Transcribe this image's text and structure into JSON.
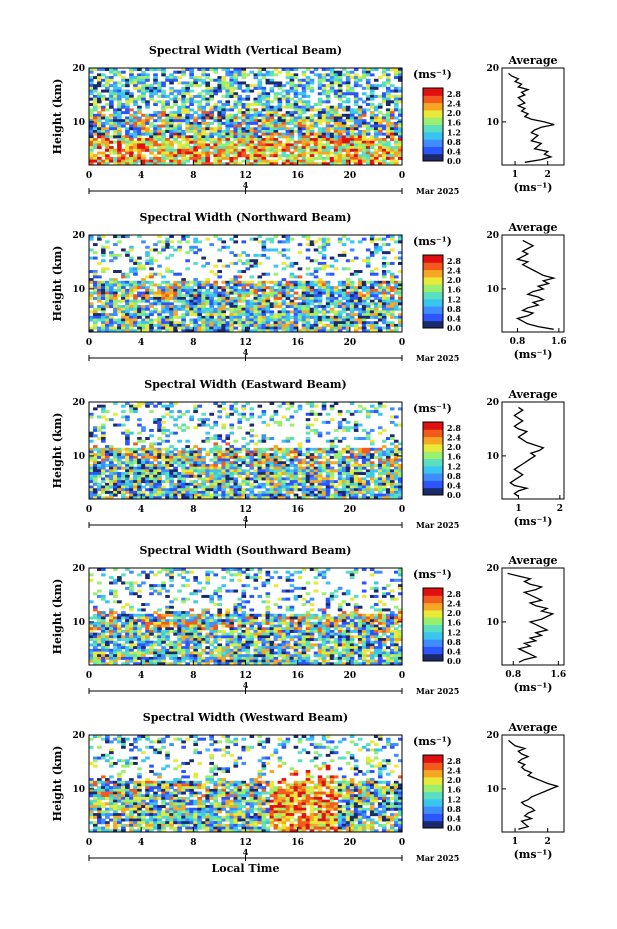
{
  "colorbar": {
    "unit": "(ms⁻¹)",
    "ticks": [
      "2.8",
      "2.4",
      "2.0",
      "1.6",
      "1.2",
      "0.8",
      "0.4",
      "0.0"
    ],
    "colors": [
      "#1b2a6b",
      "#2a55ff",
      "#3f8cff",
      "#39c5f0",
      "#5ae0c0",
      "#9aef6f",
      "#e9e93a",
      "#f5a623",
      "#f25a1e",
      "#e01010"
    ]
  },
  "chart_data": [
    {
      "type": "heatmap",
      "title": "Spectral Width (Vertical Beam)",
      "ylabel": "Height (km)",
      "yticks": [
        "20",
        "10"
      ],
      "ylim": [
        2,
        20
      ],
      "xticks": [
        "0",
        "4",
        "8",
        "12",
        "16",
        "20",
        "0"
      ],
      "xlim": [
        0,
        24
      ],
      "date_tick": "4",
      "month_label": "Mar 2025",
      "profile": {
        "title": "Average",
        "xticks": [
          "1",
          "2"
        ],
        "yticks": [
          "20",
          "10"
        ],
        "xlabel": "(ms⁻¹)",
        "xlim": [
          0.6,
          2.5
        ],
        "heights": [
          2.5,
          3,
          3.5,
          4,
          4.5,
          5,
          5.5,
          6,
          6.5,
          7,
          7.5,
          8,
          8.5,
          9,
          9.5,
          10,
          10.5,
          11,
          11.5,
          12,
          12.5,
          13,
          13.5,
          14,
          14.5,
          15,
          15.5,
          16,
          16.5,
          17,
          17.5,
          18,
          18.5,
          19
        ],
        "values": [
          1.3,
          1.8,
          2.1,
          1.9,
          2.0,
          1.6,
          1.7,
          1.8,
          1.5,
          1.6,
          1.7,
          1.5,
          1.6,
          1.8,
          2.2,
          1.9,
          1.5,
          1.3,
          1.4,
          1.2,
          1.3,
          1.1,
          1.3,
          1.2,
          1.1,
          1.3,
          1.2,
          1.4,
          1.1,
          1.2,
          1.0,
          1.1,
          0.9,
          0.8
        ]
      }
    },
    {
      "type": "heatmap",
      "title": "Spectral Width (Northward Beam)",
      "ylabel": "Height (km)",
      "yticks": [
        "20",
        "10"
      ],
      "ylim": [
        2,
        20
      ],
      "xticks": [
        "0",
        "4",
        "8",
        "12",
        "16",
        "20",
        "0"
      ],
      "xlim": [
        0,
        24
      ],
      "date_tick": "4",
      "month_label": "Mar 2025",
      "profile": {
        "title": "Average",
        "xticks": [
          "0.8",
          "1.6"
        ],
        "yticks": [
          "20",
          "10"
        ],
        "xlabel": "(ms⁻¹)",
        "xlim": [
          0.5,
          1.7
        ],
        "heights": [
          2.5,
          3,
          3.5,
          4,
          4.5,
          5,
          5.5,
          6,
          6.5,
          7,
          7.5,
          8,
          8.5,
          9,
          9.5,
          10,
          10.5,
          11,
          11.5,
          12,
          12.5,
          13,
          13.5,
          14,
          14.5,
          15,
          15.5,
          16,
          16.5,
          17,
          17.5,
          18,
          18.5,
          19
        ],
        "values": [
          1.5,
          1.2,
          1.0,
          0.9,
          0.8,
          1.0,
          1.1,
          0.9,
          1.0,
          1.2,
          1.1,
          1.3,
          1.2,
          1.0,
          1.1,
          1.3,
          1.2,
          1.4,
          1.3,
          1.5,
          1.3,
          1.2,
          1.1,
          1.0,
          0.9,
          1.0,
          0.8,
          0.9,
          1.0,
          0.9,
          1.0,
          1.1,
          1.0,
          0.9
        ]
      }
    },
    {
      "type": "heatmap",
      "title": "Spectral Width (Eastward Beam)",
      "ylabel": "Height (km)",
      "yticks": [
        "20",
        "10"
      ],
      "ylim": [
        2,
        20
      ],
      "xticks": [
        "0",
        "4",
        "8",
        "12",
        "16",
        "20",
        "0"
      ],
      "xlim": [
        0,
        24
      ],
      "date_tick": "4",
      "month_label": "Mar 2025",
      "profile": {
        "title": "Average",
        "xticks": [
          "1",
          "2"
        ],
        "yticks": [
          "20",
          "10"
        ],
        "xlabel": "(ms⁻¹)",
        "xlim": [
          0.6,
          2.1
        ],
        "heights": [
          2.5,
          3,
          3.5,
          4,
          4.5,
          5,
          5.5,
          6,
          6.5,
          7,
          7.5,
          8,
          8.5,
          9,
          9.5,
          10,
          10.5,
          11,
          11.5,
          12,
          12.5,
          13,
          13.5,
          14,
          14.5,
          15,
          15.5,
          16,
          16.5,
          17,
          17.5,
          18,
          18.5,
          19
        ],
        "values": [
          1.0,
          0.9,
          1.0,
          1.2,
          0.9,
          0.8,
          0.9,
          1.0,
          1.1,
          1.0,
          0.9,
          1.0,
          1.1,
          1.2,
          1.3,
          1.4,
          1.3,
          1.5,
          1.6,
          1.4,
          1.2,
          1.1,
          1.0,
          1.1,
          1.2,
          1.0,
          0.9,
          1.0,
          1.1,
          1.0,
          0.9,
          1.0,
          1.1,
          1.0
        ]
      }
    },
    {
      "type": "heatmap",
      "title": "Spectral Width (Southward Beam)",
      "ylabel": "Height (km)",
      "yticks": [
        "20",
        "10"
      ],
      "ylim": [
        2,
        20
      ],
      "xticks": [
        "0",
        "4",
        "8",
        "12",
        "16",
        "20",
        "0"
      ],
      "xlim": [
        0,
        24
      ],
      "date_tick": "4",
      "month_label": "Mar 2025",
      "profile": {
        "title": "Average",
        "xticks": [
          "0.8",
          "1.6"
        ],
        "yticks": [
          "20",
          "10"
        ],
        "xlabel": "(ms⁻¹)",
        "xlim": [
          0.6,
          1.7
        ],
        "heights": [
          2.5,
          3,
          3.5,
          4,
          4.5,
          5,
          5.5,
          6,
          6.5,
          7,
          7.5,
          8,
          8.5,
          9,
          9.5,
          10,
          10.5,
          11,
          11.5,
          12,
          12.5,
          13,
          13.5,
          14,
          14.5,
          15,
          15.5,
          16,
          16.5,
          17,
          17.5,
          18,
          18.5,
          19
        ],
        "values": [
          0.9,
          1.0,
          1.2,
          1.1,
          1.0,
          0.9,
          1.1,
          1.0,
          1.2,
          1.1,
          1.3,
          1.2,
          1.4,
          1.3,
          1.2,
          1.1,
          1.3,
          1.4,
          1.5,
          1.3,
          1.4,
          1.2,
          1.1,
          1.3,
          1.2,
          1.1,
          1.0,
          1.2,
          1.3,
          1.1,
          1.0,
          1.1,
          0.9,
          0.7
        ]
      }
    },
    {
      "type": "heatmap",
      "title": "Spectral Width (Westward Beam)",
      "ylabel": "Height (km)",
      "yticks": [
        "20",
        "10"
      ],
      "ylim": [
        2,
        20
      ],
      "xticks": [
        "0",
        "4",
        "8",
        "12",
        "16",
        "20",
        "0"
      ],
      "xlim": [
        0,
        24
      ],
      "date_tick": "4",
      "month_label": "Mar 2025",
      "xlabel": "Local Time",
      "profile": {
        "title": "Average",
        "xticks": [
          "1",
          "2"
        ],
        "yticks": [
          "20",
          "10"
        ],
        "xlabel": "(ms⁻¹)",
        "xlim": [
          0.6,
          2.5
        ],
        "heights": [
          2.5,
          3,
          3.5,
          4,
          4.5,
          5,
          5.5,
          6,
          6.5,
          7,
          7.5,
          8,
          8.5,
          9,
          9.5,
          10,
          10.5,
          11,
          11.5,
          12,
          12.5,
          13,
          13.5,
          14,
          14.5,
          15,
          15.5,
          16,
          16.5,
          17,
          17.5,
          18,
          18.5,
          19
        ],
        "values": [
          1.1,
          1.4,
          1.3,
          1.2,
          1.5,
          1.3,
          1.4,
          1.6,
          1.5,
          1.3,
          1.2,
          1.4,
          1.5,
          1.7,
          1.9,
          2.1,
          2.3,
          2.0,
          1.8,
          1.6,
          1.4,
          1.5,
          1.3,
          1.2,
          1.3,
          1.1,
          1.2,
          1.4,
          1.2,
          1.1,
          1.3,
          1.0,
          0.9,
          0.8
        ]
      }
    }
  ]
}
